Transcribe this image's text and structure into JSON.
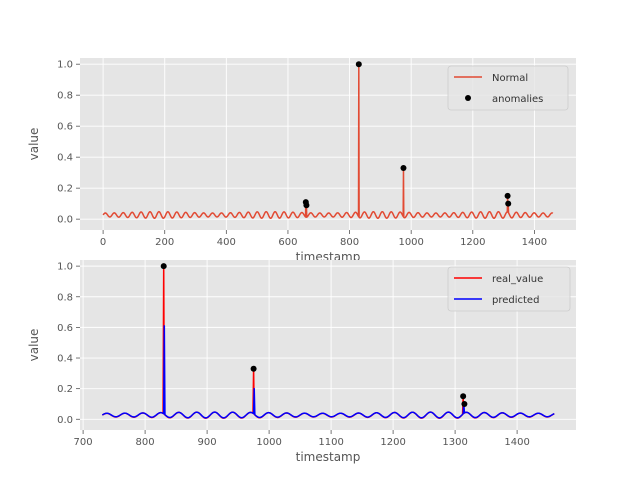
{
  "chart_data": [
    {
      "type": "line",
      "xlabel": "timestamp",
      "ylabel": "value",
      "xlim": [
        -75,
        1535
      ],
      "ylim": [
        -0.07,
        1.04
      ],
      "xticks": [
        0,
        200,
        400,
        600,
        800,
        1000,
        1200,
        1400
      ],
      "yticks": [
        0.0,
        0.2,
        0.4,
        0.6,
        0.8,
        1.0
      ],
      "ytick_labels": [
        "0.0",
        "0.2",
        "0.4",
        "0.6",
        "0.8",
        "1.0"
      ],
      "grid": true,
      "legend": "top-right",
      "series": [
        {
          "name": "Normal",
          "kind": "line",
          "color": "#e24a33",
          "x_range": [
            0,
            1460
          ],
          "baseline": 0.027,
          "amplitude": 0.017,
          "period": 29,
          "spikes": [
            {
              "x": 658,
              "y": 0.11
            },
            {
              "x": 660,
              "y": 0.09
            },
            {
              "x": 830,
              "y": 1.0
            },
            {
              "x": 975,
              "y": 0.33
            },
            {
              "x": 1313,
              "y": 0.15
            },
            {
              "x": 1315,
              "y": 0.1
            }
          ]
        },
        {
          "name": "anomalies",
          "kind": "scatter",
          "color": "#000000",
          "x": [
            658,
            660,
            830,
            975,
            1313,
            1315
          ],
          "y": [
            0.11,
            0.09,
            1.0,
            0.33,
            0.15,
            0.1
          ]
        }
      ]
    },
    {
      "type": "line",
      "xlabel": "timestamp",
      "ylabel": "value",
      "xlim": [
        695,
        1495
      ],
      "ylim": [
        -0.07,
        1.04
      ],
      "xticks": [
        700,
        800,
        900,
        1000,
        1100,
        1200,
        1300,
        1400
      ],
      "yticks": [
        0.0,
        0.2,
        0.4,
        0.6,
        0.8,
        1.0
      ],
      "ytick_labels": [
        "0.0",
        "0.2",
        "0.4",
        "0.6",
        "0.8",
        "1.0"
      ],
      "grid": true,
      "legend": "top-right",
      "series": [
        {
          "name": "real_value",
          "kind": "line",
          "color": "#ff0000",
          "x_range": [
            731,
            1460
          ],
          "baseline": 0.027,
          "amplitude": 0.016,
          "period": 29,
          "spikes": [
            {
              "x": 830,
              "y": 1.0
            },
            {
              "x": 975,
              "y": 0.33
            },
            {
              "x": 1313,
              "y": 0.15
            }
          ]
        },
        {
          "name": "predicted",
          "kind": "line",
          "color": "#0000ff",
          "x_range": [
            731,
            1460
          ],
          "baseline": 0.028,
          "amplitude": 0.015,
          "period": 29,
          "spikes": [
            {
              "x": 831,
              "y": 0.61
            },
            {
              "x": 976,
              "y": 0.2
            },
            {
              "x": 1314,
              "y": 0.11
            }
          ]
        },
        {
          "name": "",
          "kind": "scatter",
          "color": "#000000",
          "x": [
            830,
            975,
            1313,
            1315
          ],
          "y": [
            1.0,
            0.33,
            0.15,
            0.1
          ]
        }
      ]
    }
  ]
}
